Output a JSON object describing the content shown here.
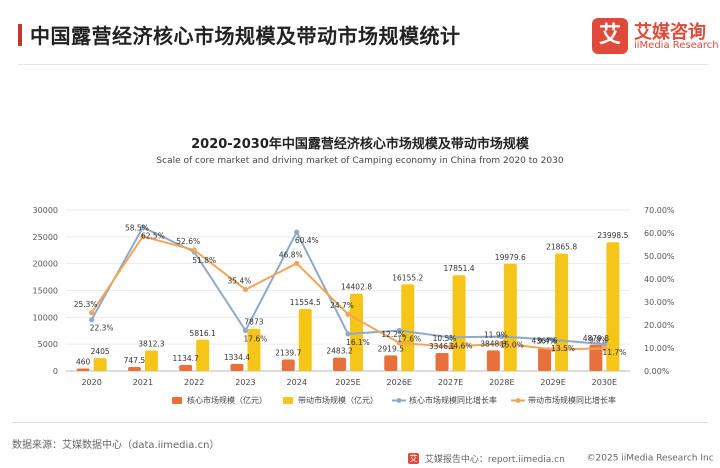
{
  "header": {
    "title": "中国露营经济核心市场规模及带动市场规模统计",
    "logo_mark": "艾",
    "logo_cn": "艾媒咨询",
    "logo_en": "iiMedia Research"
  },
  "chart_data": {
    "type": "bar+line",
    "title": "2020-2030年中国露营经济核心市场规模及带动市场规模",
    "subtitle": "Scale of core market and driving market of Camping economy in China from 2020 to 2030",
    "categories": [
      "2020",
      "2021",
      "2022",
      "2023",
      "2024",
      "2025E",
      "2026E",
      "2027E",
      "2028E",
      "2029E",
      "2030E"
    ],
    "y_left_ticks": [
      "0",
      "5000",
      "10000",
      "15000",
      "20000",
      "25000",
      "30000"
    ],
    "y_left_range": [
      0,
      30000
    ],
    "y_right_ticks": [
      "0.00%",
      "10.00%",
      "20.00%",
      "30.00%",
      "40.00%",
      "50.00%",
      "60.00%",
      "70.00%"
    ],
    "y_right_range": [
      0,
      70
    ],
    "series": [
      {
        "name": "核心市场规模（亿元）",
        "kind": "bar",
        "color": "#e8703a",
        "values": [
          460,
          747.5,
          1134.7,
          1334.4,
          2139.7,
          2483.2,
          2919.5,
          3346.1,
          3848.3,
          4367.6,
          4879.8
        ],
        "labels": [
          "460",
          "747.5",
          "1134.7",
          "1334.4",
          "2139.7",
          "2483.2",
          "2919.5",
          "3346.1",
          "3848.3",
          "4367.6",
          "4879.8"
        ]
      },
      {
        "name": "带动市场规模（亿元）",
        "kind": "bar",
        "color": "#f5c518",
        "values": [
          2405,
          3812.3,
          5816.1,
          7873,
          11554.5,
          14402.8,
          16155.2,
          17851.4,
          19979.6,
          21865.8,
          23998.5
        ],
        "labels": [
          "2405",
          "3812.3",
          "5816.1",
          "7873",
          "11554.5",
          "14402.8",
          "16155.2",
          "17851.4",
          "19979.6",
          "21865.8",
          "23998.5"
        ]
      },
      {
        "name": "核心市场规模同比增长率",
        "kind": "line",
        "color": "#8fa9c9",
        "values": [
          22.3,
          62.5,
          51.8,
          17.6,
          60.4,
          16.1,
          17.6,
          14.6,
          15.0,
          13.5,
          11.7
        ],
        "labels": [
          "22.3%",
          "62.5%",
          "51.8%",
          "17.6%",
          "60.4%",
          "16.1%",
          "17.6%",
          "14.6%",
          "15.0%",
          "13.5%",
          "11.7%"
        ]
      },
      {
        "name": "带动市场规模同比增长率",
        "kind": "line",
        "color": "#f2a65a",
        "values": [
          25.3,
          58.5,
          52.6,
          35.4,
          46.8,
          24.7,
          12.2,
          10.5,
          11.9,
          9.4,
          9.8
        ],
        "labels": [
          "25.3%",
          "58.5%",
          "52.6%",
          "35.4%",
          "46.8%",
          "24.7%",
          "12.2%",
          "10.5%",
          "11.9%",
          "9.4%",
          "9.8%"
        ]
      }
    ],
    "legend_position": "bottom",
    "grid": true
  },
  "footer": {
    "source": "数据来源：艾媒数据中心（data.iimedia.cn）",
    "mini_mark": "艾",
    "report_text": "艾媒报告中心：report.iimedia.cn",
    "copyright": "©2025  iiMedia Research  Inc"
  }
}
